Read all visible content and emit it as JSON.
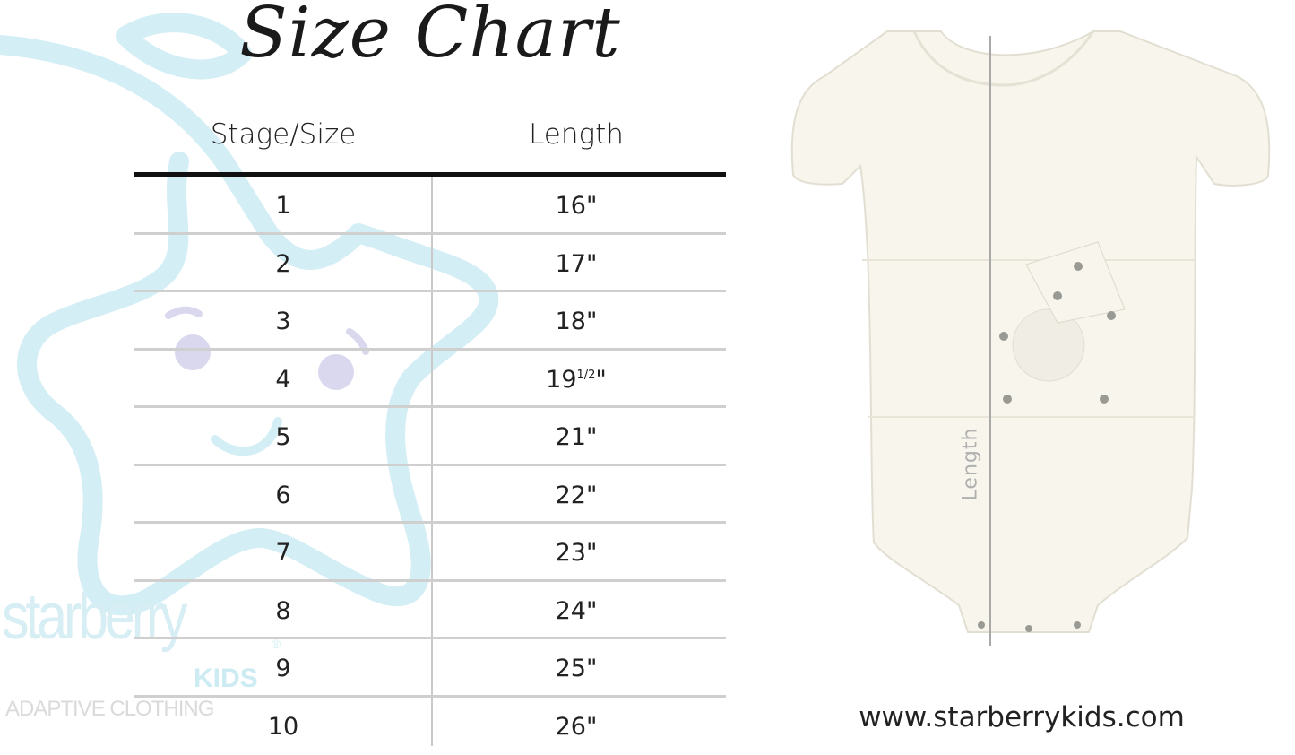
{
  "title": "Size Chart",
  "table": {
    "headers": [
      "Stage/Size",
      "Length"
    ],
    "rows": [
      {
        "size": "1",
        "length": "16\""
      },
      {
        "size": "2",
        "length": "17\""
      },
      {
        "size": "3",
        "length": "18\""
      },
      {
        "size": "4",
        "length": "19",
        "length_fraction": "1/2",
        "length_unit": "\""
      },
      {
        "size": "5",
        "length": "21\""
      },
      {
        "size": "6",
        "length": "22\""
      },
      {
        "size": "7",
        "length": "23\""
      },
      {
        "size": "8",
        "length": "24\""
      },
      {
        "size": "9",
        "length": "25\""
      },
      {
        "size": "10",
        "length": "26\""
      }
    ]
  },
  "watermark": {
    "brand": "starberry",
    "kids": "KIDS",
    "registered": "®",
    "tagline": "ADAPTIVE CLOTHING",
    "color": "#cdebf2"
  },
  "product_image": {
    "icon": "baby-onesie-illustration",
    "measure_label": "Length"
  },
  "website": "www.starberrykids.com"
}
